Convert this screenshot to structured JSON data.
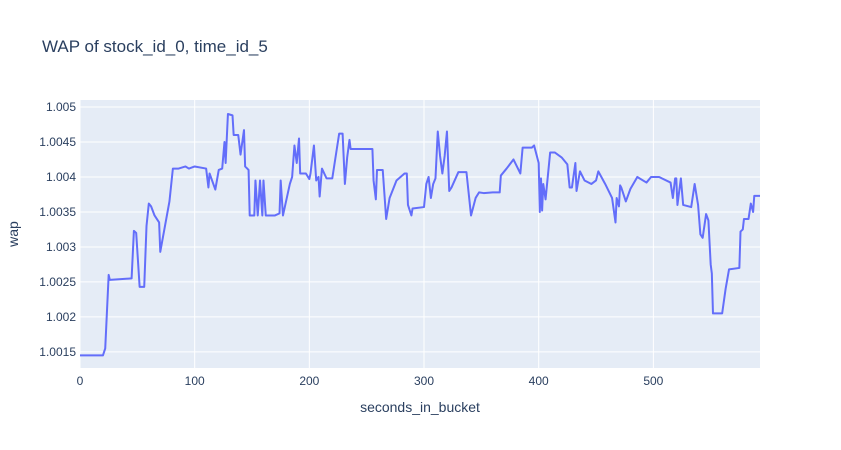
{
  "chart_data": {
    "type": "line",
    "title": "WAP of stock_id_0, time_id_5",
    "x_label": "seconds_in_bucket",
    "y_label": "wap",
    "xlim": [
      0,
      593
    ],
    "xticks": [
      0,
      100,
      200,
      300,
      400,
      500
    ],
    "ylim": [
      1.00127,
      1.0051
    ],
    "yticks": [
      1.0015,
      1.002,
      1.0025,
      1.003,
      1.0035,
      1.004,
      1.0045,
      1.005
    ],
    "grid": true,
    "series": [
      {
        "name": "wap",
        "color": "#636efa",
        "x": [
          0,
          20,
          22,
          25,
          26,
          45,
          47,
          49,
          52,
          56,
          58,
          60,
          62,
          65,
          69,
          70,
          78,
          81,
          86,
          92,
          95,
          100,
          110,
          112,
          113,
          118,
          121,
          124,
          126,
          127,
          129,
          133,
          134,
          138,
          140,
          143,
          144,
          147,
          148,
          152,
          153,
          155,
          157,
          159,
          160,
          162,
          170,
          174,
          175,
          177,
          183,
          185,
          187,
          189,
          191,
          192,
          197,
          200,
          201,
          204,
          206,
          208,
          209,
          211,
          215,
          220,
          226,
          229,
          231,
          233,
          235,
          236,
          250,
          255,
          256,
          258,
          259,
          264,
          267,
          270,
          276,
          283,
          285,
          286,
          289,
          290,
          300,
          302,
          304,
          306,
          308,
          310,
          312,
          314,
          316,
          318,
          320,
          322,
          324,
          330,
          337,
          341,
          345,
          348,
          352,
          360,
          366,
          367,
          372,
          378,
          384,
          386,
          394,
          396,
          400,
          401,
          402,
          403,
          404,
          406,
          410,
          414,
          420,
          425,
          427,
          429,
          432,
          433,
          436,
          440,
          446,
          450,
          452,
          458,
          464,
          467,
          468,
          470,
          471,
          472,
          476,
          480,
          486,
          494,
          498,
          505,
          515,
          517,
          519,
          520,
          521,
          524,
          526,
          533,
          536,
          539,
          541,
          543,
          546,
          548,
          550,
          551,
          552,
          560,
          563,
          566,
          575,
          576,
          578,
          579,
          583,
          585,
          587,
          588,
          593
        ],
        "values": [
          1.00145,
          1.00145,
          1.00155,
          1.0026,
          1.00253,
          1.00255,
          1.00323,
          1.0032,
          1.00243,
          1.00243,
          1.0033,
          1.00362,
          1.00358,
          1.00345,
          1.00335,
          1.00293,
          1.00365,
          1.00412,
          1.00412,
          1.00415,
          1.00412,
          1.00415,
          1.00412,
          1.00385,
          1.00405,
          1.00382,
          1.0041,
          1.00412,
          1.0045,
          1.0042,
          1.0049,
          1.00488,
          1.0046,
          1.0046,
          1.00432,
          1.00467,
          1.00415,
          1.0041,
          1.00345,
          1.00345,
          1.00395,
          1.00345,
          1.00395,
          1.00345,
          1.00395,
          1.00345,
          1.00345,
          1.00348,
          1.00395,
          1.00345,
          1.0039,
          1.004,
          1.00445,
          1.0042,
          1.00455,
          1.00405,
          1.00405,
          1.00397,
          1.00405,
          1.00445,
          1.00395,
          1.004,
          1.00372,
          1.00412,
          1.00398,
          1.00398,
          1.00462,
          1.00462,
          1.0039,
          1.00428,
          1.00453,
          1.0044,
          1.0044,
          1.0044,
          1.00395,
          1.00368,
          1.0041,
          1.0041,
          1.0034,
          1.0037,
          1.00395,
          1.00405,
          1.00405,
          1.0036,
          1.00345,
          1.00355,
          1.00357,
          1.0039,
          1.004,
          1.0037,
          1.0039,
          1.00398,
          1.00465,
          1.0043,
          1.00405,
          1.0043,
          1.00465,
          1.0038,
          1.00385,
          1.00407,
          1.00407,
          1.00345,
          1.0037,
          1.00378,
          1.00377,
          1.00378,
          1.00378,
          1.00402,
          1.00412,
          1.00425,
          1.00405,
          1.00442,
          1.00442,
          1.00445,
          1.0042,
          1.0035,
          1.00398,
          1.00352,
          1.0039,
          1.00368,
          1.00435,
          1.00435,
          1.00428,
          1.00418,
          1.00385,
          1.00385,
          1.0042,
          1.0038,
          1.00408,
          1.00395,
          1.0039,
          1.00395,
          1.00408,
          1.0039,
          1.0037,
          1.00335,
          1.0037,
          1.00358,
          1.00388,
          1.00385,
          1.00365,
          1.00383,
          1.004,
          1.00392,
          1.004,
          1.004,
          1.00392,
          1.0037,
          1.00398,
          1.00398,
          1.0036,
          1.00398,
          1.0036,
          1.00357,
          1.0039,
          1.0036,
          1.00318,
          1.00313,
          1.00347,
          1.00338,
          1.00275,
          1.00262,
          1.00205,
          1.00205,
          1.0024,
          1.00268,
          1.0027,
          1.00322,
          1.00325,
          1.0034,
          1.0034,
          1.00362,
          1.0035,
          1.00373,
          1.00373
        ]
      }
    ]
  }
}
